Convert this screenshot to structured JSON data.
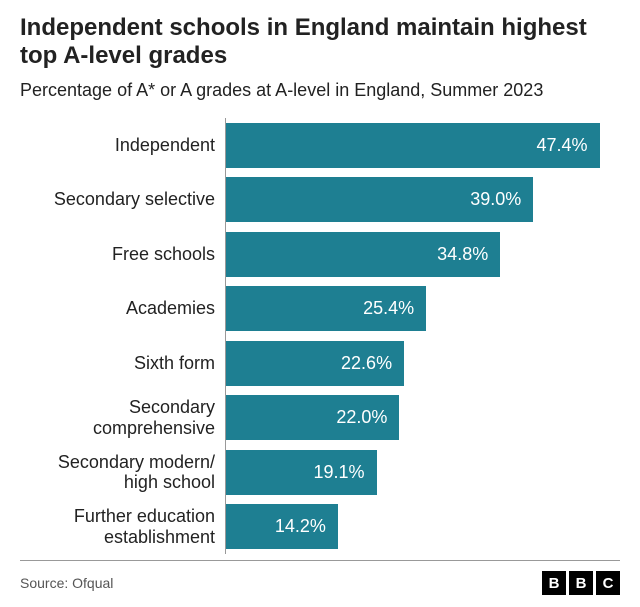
{
  "title": "Independent schools in England maintain highest top A-level grades",
  "subtitle": "Percentage of A* or A grades at A-level in England, Summer 2023",
  "source": "Source: Ofqual",
  "logo": [
    "B",
    "B",
    "C"
  ],
  "chart": {
    "type": "bar",
    "orientation": "horizontal",
    "bar_color": "#1e7f92",
    "value_label_color": "#ffffff",
    "axis_color": "#999999",
    "background_color": "#ffffff",
    "title_fontsize": 24,
    "subtitle_fontsize": 18,
    "label_fontsize": 18,
    "value_fontsize": 18,
    "source_fontsize": 14,
    "logo_fontsize": 15,
    "x_max": 50,
    "categories": [
      "Independent",
      "Secondary selective",
      "Free schools",
      "Academies",
      "Sixth form",
      "Secondary comprehensive",
      "Secondary modern/ high school",
      "Further education establishment"
    ],
    "values": [
      47.4,
      39.0,
      34.8,
      25.4,
      22.6,
      22.0,
      19.1,
      14.2
    ],
    "value_labels": [
      "47.4%",
      "39.0%",
      "34.8%",
      "25.4%",
      "22.6%",
      "22.0%",
      "19.1%",
      "14.2%"
    ]
  }
}
